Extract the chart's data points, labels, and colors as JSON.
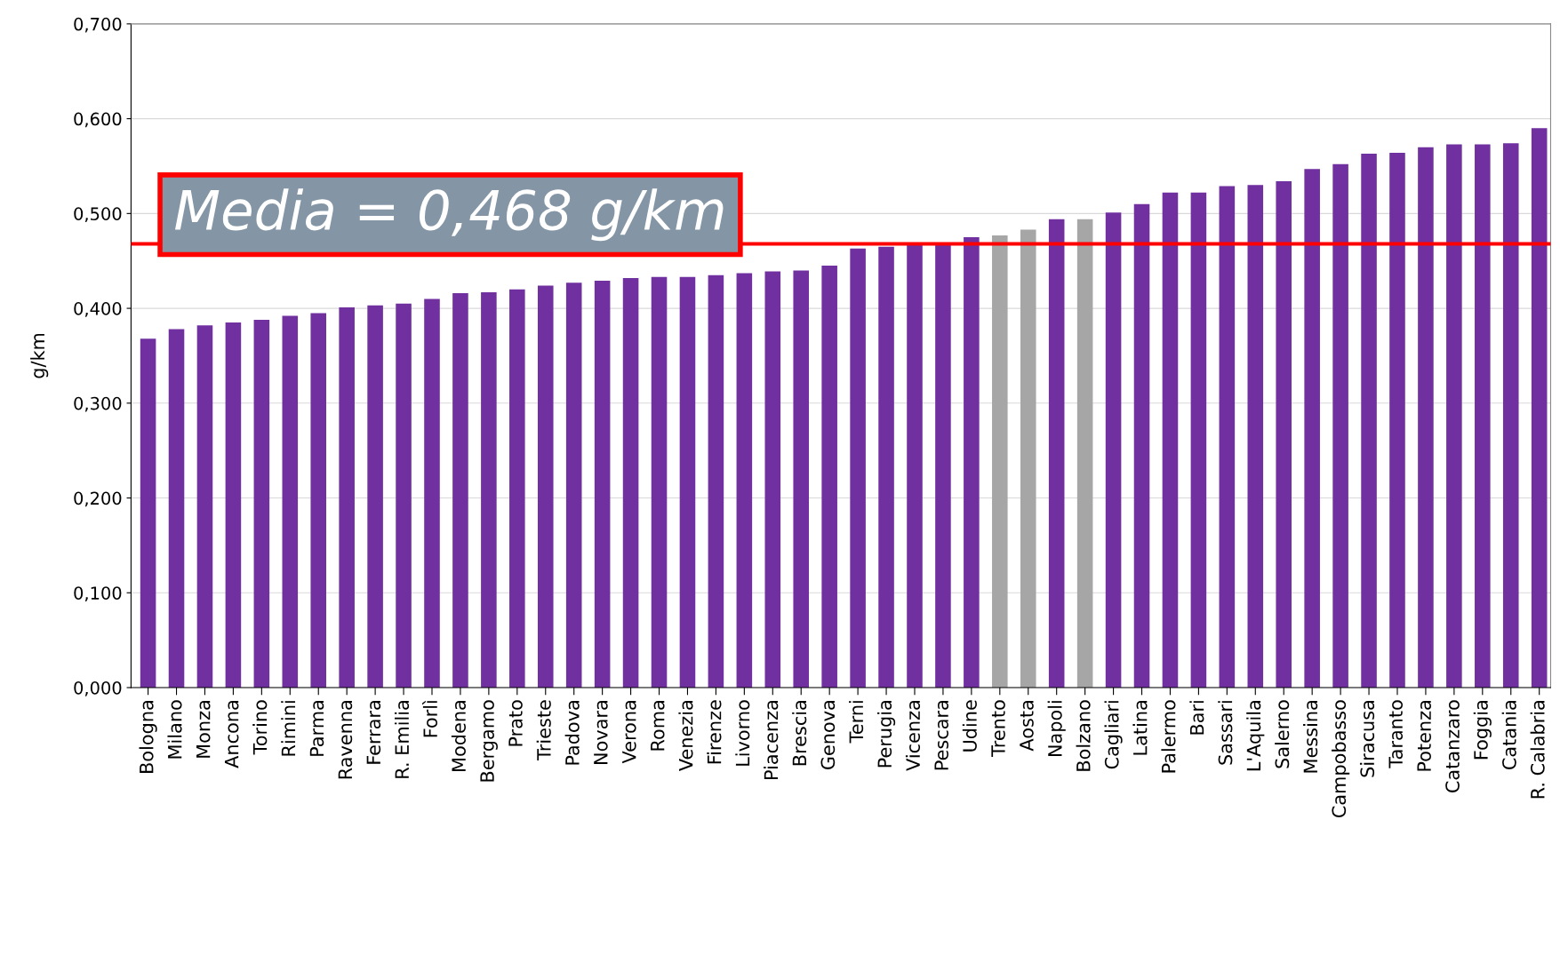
{
  "chart_data": {
    "type": "bar",
    "ylabel": "g/km",
    "categories": [
      "Bologna",
      "Milano",
      "Monza",
      "Ancona",
      "Torino",
      "Rimini",
      "Parma",
      "Ravenna",
      "Ferrara",
      "R. Emilia",
      "Forlì",
      "Modena",
      "Bergamo",
      "Prato",
      "Trieste",
      "Padova",
      "Novara",
      "Verona",
      "Roma",
      "Venezia",
      "Firenze",
      "Livorno",
      "Piacenza",
      "Brescia",
      "Genova",
      "Terni",
      "Perugia",
      "Vicenza",
      "Pescara",
      "Udine",
      "Trento",
      "Aosta",
      "Napoli",
      "Bolzano",
      "Cagliari",
      "Latina",
      "Palermo",
      "Bari",
      "Sassari",
      "L'Aquila",
      "Salerno",
      "Messina",
      "Campobasso",
      "Siracusa",
      "Taranto",
      "Potenza",
      "Catanzaro",
      "Foggia",
      "Catania",
      "R. Calabria"
    ],
    "values": [
      0.368,
      0.378,
      0.382,
      0.385,
      0.388,
      0.392,
      0.395,
      0.401,
      0.403,
      0.405,
      0.41,
      0.416,
      0.417,
      0.42,
      0.424,
      0.427,
      0.429,
      0.432,
      0.433,
      0.433,
      0.435,
      0.437,
      0.439,
      0.44,
      0.445,
      0.463,
      0.465,
      0.467,
      0.469,
      0.475,
      0.477,
      0.483,
      0.494,
      0.494,
      0.501,
      0.51,
      0.522,
      0.522,
      0.529,
      0.53,
      0.534,
      0.547,
      0.552,
      0.563,
      0.564,
      0.57,
      0.573,
      0.573,
      0.574,
      0.59
    ],
    "colors": [
      "#7030a0",
      "#7030a0",
      "#7030a0",
      "#7030a0",
      "#7030a0",
      "#7030a0",
      "#7030a0",
      "#7030a0",
      "#7030a0",
      "#7030a0",
      "#7030a0",
      "#7030a0",
      "#7030a0",
      "#7030a0",
      "#7030a0",
      "#7030a0",
      "#7030a0",
      "#7030a0",
      "#7030a0",
      "#7030a0",
      "#7030a0",
      "#7030a0",
      "#7030a0",
      "#7030a0",
      "#7030a0",
      "#7030a0",
      "#7030a0",
      "#7030a0",
      "#7030a0",
      "#7030a0",
      "#a6a6a6",
      "#a6a6a6",
      "#7030a0",
      "#a6a6a6",
      "#7030a0",
      "#7030a0",
      "#7030a0",
      "#7030a0",
      "#7030a0",
      "#7030a0",
      "#7030a0",
      "#7030a0",
      "#7030a0",
      "#7030a0",
      "#7030a0",
      "#7030a0",
      "#7030a0",
      "#7030a0",
      "#7030a0",
      "#7030a0"
    ],
    "ylim": [
      0,
      0.7
    ],
    "yticks": [
      {
        "value": 0,
        "label": "0,000"
      },
      {
        "value": 0.1,
        "label": "0,100"
      },
      {
        "value": 0.2,
        "label": "0,200"
      },
      {
        "value": 0.3,
        "label": "0,300"
      },
      {
        "value": 0.4,
        "label": "0,400"
      },
      {
        "value": 0.5,
        "label": "0,500"
      },
      {
        "value": 0.6,
        "label": "0,600"
      },
      {
        "value": 0.7,
        "label": "0,700"
      }
    ],
    "ref_lines": [
      {
        "axis": "y",
        "value": 0.468,
        "label": "Media = 0,468 g/km",
        "color": "#ff0000"
      }
    ],
    "grid": "y"
  }
}
